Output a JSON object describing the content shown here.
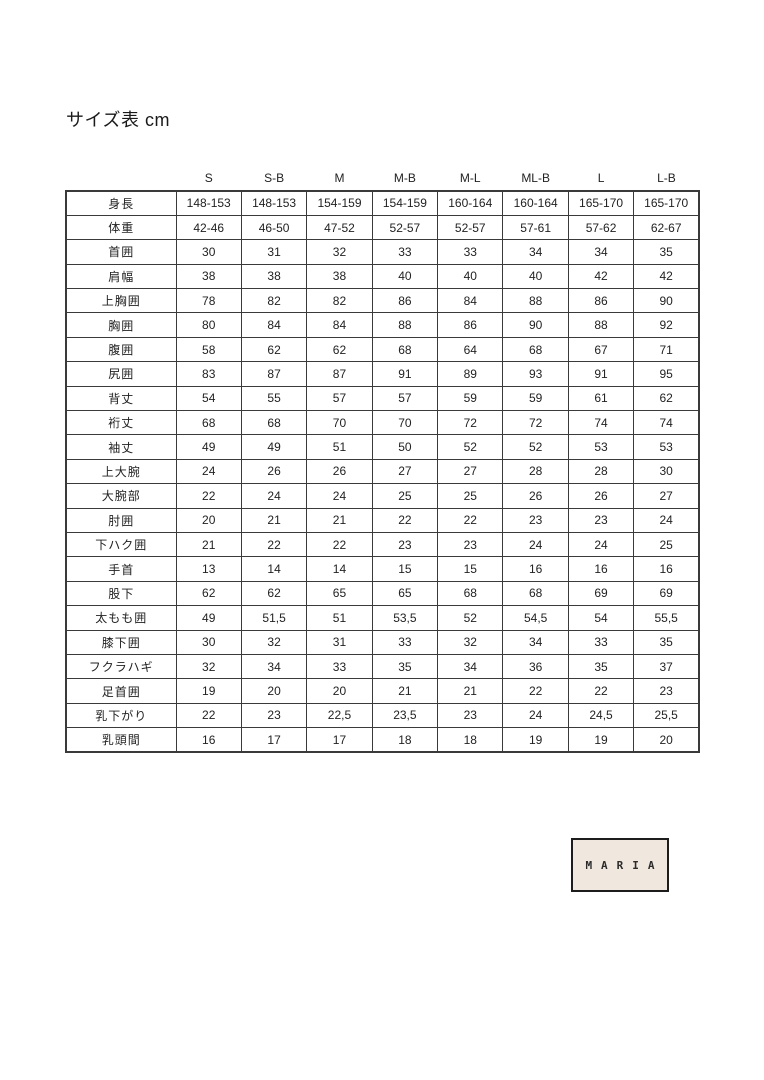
{
  "page": {
    "title": "サイズ表 cm"
  },
  "logo": {
    "text": "MARIA",
    "background": "#f0e7df",
    "border_color": "#1c1c1c"
  },
  "chart_data": {
    "type": "table",
    "title": "サイズ表 cm",
    "columns": [
      "S",
      "S-B",
      "M",
      "M-B",
      "M-L",
      "ML-B",
      "L",
      "L-B"
    ],
    "rows": [
      {
        "label": "身長",
        "values": [
          "148-153",
          "148-153",
          "154-159",
          "154-159",
          "160-164",
          "160-164",
          "165-170",
          "165-170"
        ]
      },
      {
        "label": "体重",
        "values": [
          "42-46",
          "46-50",
          "47-52",
          "52-57",
          "52-57",
          "57-61",
          "57-62",
          "62-67"
        ]
      },
      {
        "label": "首囲",
        "values": [
          "30",
          "31",
          "32",
          "33",
          "33",
          "34",
          "34",
          "35"
        ]
      },
      {
        "label": "肩幅",
        "values": [
          "38",
          "38",
          "38",
          "40",
          "40",
          "40",
          "42",
          "42"
        ]
      },
      {
        "label": "上胸囲",
        "values": [
          "78",
          "82",
          "82",
          "86",
          "84",
          "88",
          "86",
          "90"
        ]
      },
      {
        "label": "胸囲",
        "values": [
          "80",
          "84",
          "84",
          "88",
          "86",
          "90",
          "88",
          "92"
        ]
      },
      {
        "label": "腹囲",
        "values": [
          "58",
          "62",
          "62",
          "68",
          "64",
          "68",
          "67",
          "71"
        ]
      },
      {
        "label": "尻囲",
        "values": [
          "83",
          "87",
          "87",
          "91",
          "89",
          "93",
          "91",
          "95"
        ]
      },
      {
        "label": "背丈",
        "values": [
          "54",
          "55",
          "57",
          "57",
          "59",
          "59",
          "61",
          "62"
        ]
      },
      {
        "label": "裄丈",
        "values": [
          "68",
          "68",
          "70",
          "70",
          "72",
          "72",
          "74",
          "74"
        ]
      },
      {
        "label": "袖丈",
        "values": [
          "49",
          "49",
          "51",
          "50",
          "52",
          "52",
          "53",
          "53"
        ]
      },
      {
        "label": "上大腕",
        "values": [
          "24",
          "26",
          "26",
          "27",
          "27",
          "28",
          "28",
          "30"
        ]
      },
      {
        "label": "大腕部",
        "values": [
          "22",
          "24",
          "24",
          "25",
          "25",
          "26",
          "26",
          "27"
        ]
      },
      {
        "label": "肘囲",
        "values": [
          "20",
          "21",
          "21",
          "22",
          "22",
          "23",
          "23",
          "24"
        ]
      },
      {
        "label": "下ハク囲",
        "values": [
          "21",
          "22",
          "22",
          "23",
          "23",
          "24",
          "24",
          "25"
        ]
      },
      {
        "label": "手首",
        "values": [
          "13",
          "14",
          "14",
          "15",
          "15",
          "16",
          "16",
          "16"
        ]
      },
      {
        "label": "股下",
        "values": [
          "62",
          "62",
          "65",
          "65",
          "68",
          "68",
          "69",
          "69"
        ]
      },
      {
        "label": "太もも囲",
        "values": [
          "49",
          "51,5",
          "51",
          "53,5",
          "52",
          "54,5",
          "54",
          "55,5"
        ]
      },
      {
        "label": "膝下囲",
        "values": [
          "30",
          "32",
          "31",
          "33",
          "32",
          "34",
          "33",
          "35"
        ]
      },
      {
        "label": "フクラハギ",
        "values": [
          "32",
          "34",
          "33",
          "35",
          "34",
          "36",
          "35",
          "37"
        ]
      },
      {
        "label": "足首囲",
        "values": [
          "19",
          "20",
          "20",
          "21",
          "21",
          "22",
          "22",
          "23"
        ]
      },
      {
        "label": "乳下がり",
        "values": [
          "22",
          "23",
          "22,5",
          "23,5",
          "23",
          "24",
          "24,5",
          "25,5"
        ]
      },
      {
        "label": "乳頭間",
        "values": [
          "16",
          "17",
          "17",
          "18",
          "18",
          "19",
          "19",
          "20"
        ]
      }
    ]
  }
}
